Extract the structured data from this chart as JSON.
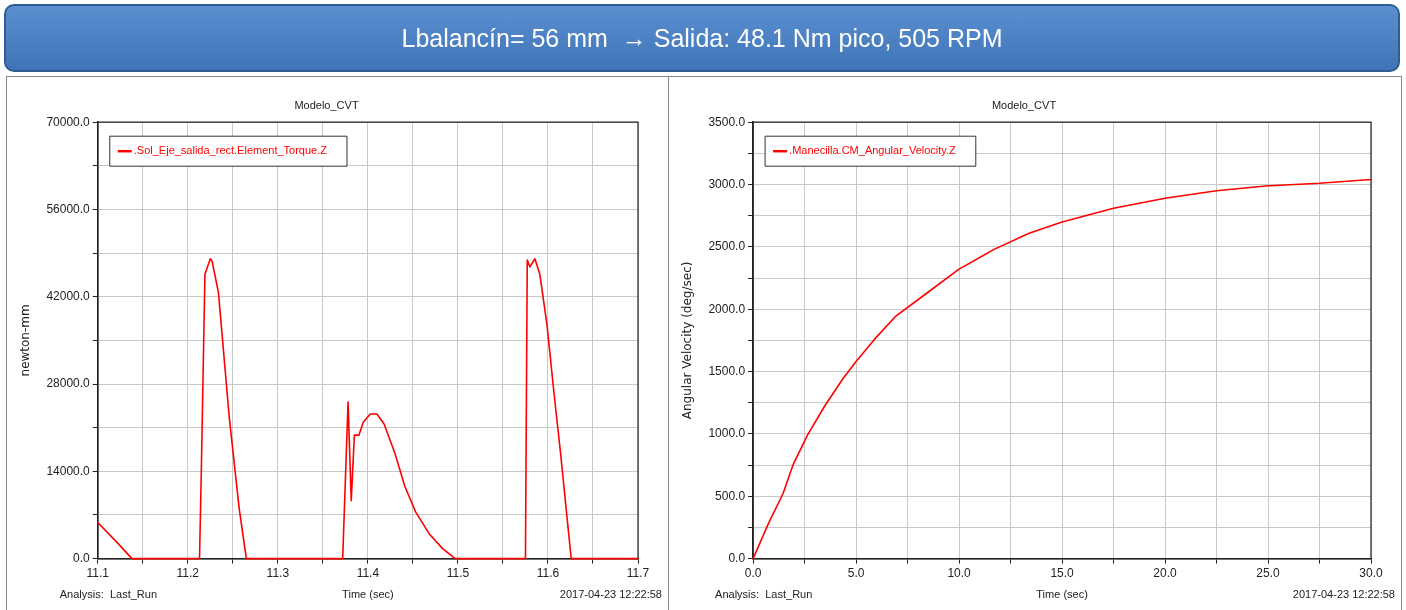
{
  "chart_data": [
    {
      "type": "other",
      "title": "Lbalancín= 56 mm  → Salida: 48.1 Nm pico, 505 RPM"
    },
    {
      "type": "line",
      "title": "Modelo_CVT",
      "xlabel": "Time (sec)",
      "ylabel": "newton-mm",
      "legend": "top left",
      "grid": true,
      "marker": "none",
      "line_style": "solid",
      "xlim": [
        11.1,
        11.7
      ],
      "xticks": [
        11.1,
        {
          "value": 11.15,
          "label": null
        },
        11.2,
        {
          "value": 11.25,
          "label": null
        },
        11.3,
        {
          "value": 11.35,
          "label": null
        },
        11.4,
        {
          "value": 11.45,
          "label": null
        },
        11.5,
        {
          "value": 11.55,
          "label": null
        },
        11.6,
        {
          "value": 11.65,
          "label": null
        },
        11.7
      ],
      "ylim": [
        0,
        70000
      ],
      "yticks": [
        {
          "value": 0,
          "label": "0.0"
        },
        {
          "value": 7000,
          "label": null
        },
        {
          "value": 14000,
          "label": "14000.0"
        },
        {
          "value": 21000,
          "label": null
        },
        {
          "value": 28000,
          "label": "28000.0"
        },
        {
          "value": 35000,
          "label": null
        },
        {
          "value": 42000,
          "label": "42000.0"
        },
        {
          "value": 49000,
          "label": null
        },
        {
          "value": 56000,
          "label": "56000.0"
        },
        {
          "value": 63000,
          "label": null
        },
        {
          "value": 70000,
          "label": "70000.0"
        }
      ],
      "x": [
        11.1,
        11.12,
        11.138,
        11.213,
        11.215,
        11.219,
        11.225,
        11.227,
        11.234,
        11.246,
        11.257,
        11.265,
        11.372,
        11.378,
        11.3815,
        11.385,
        11.39,
        11.395,
        11.4027,
        11.41,
        11.418,
        11.43,
        11.441,
        11.453,
        11.468,
        11.483,
        11.497,
        11.575,
        11.577,
        11.58,
        11.5855,
        11.591,
        11.599,
        11.6065,
        11.614,
        11.6258,
        11.7
      ],
      "series": [
        {
          "name": ".Sol_Eje_salida_rect.Element_Torque.Z",
          "color": "#ff0000",
          "values": [
            5800,
            2800,
            0,
            0,
            14000,
            45600,
            48100,
            47700,
            42700,
            22700,
            8100,
            0,
            0,
            25100,
            9300,
            19800,
            19800,
            21900,
            23200,
            23200,
            21600,
            16900,
            11600,
            7500,
            4000,
            1600,
            0,
            0,
            47900,
            46800,
            48100,
            45600,
            37400,
            26800,
            16900,
            0,
            0
          ]
        }
      ],
      "annotations": [
        "Analysis:  Last_Run",
        "2017-04-23 12:22:58"
      ]
    },
    {
      "type": "line",
      "title": "Modelo_CVT",
      "xlabel": "Time (sec)",
      "ylabel": "Angular Velocity (deg/sec)",
      "legend": "top left",
      "grid": true,
      "marker": "none",
      "line_style": "solid",
      "xlim": [
        0,
        30
      ],
      "xticks": [
        {
          "value": 0,
          "label": "0.0"
        },
        {
          "value": 2.5,
          "label": null
        },
        {
          "value": 5,
          "label": "5.0"
        },
        {
          "value": 7.5,
          "label": null
        },
        {
          "value": 10,
          "label": "10.0"
        },
        {
          "value": 12.5,
          "label": null
        },
        {
          "value": 15,
          "label": "15.0"
        },
        {
          "value": 17.5,
          "label": null
        },
        {
          "value": 20,
          "label": "20.0"
        },
        {
          "value": 22.5,
          "label": null
        },
        {
          "value": 25,
          "label": "25.0"
        },
        {
          "value": 27.5,
          "label": null
        },
        {
          "value": 30,
          "label": "30.0"
        }
      ],
      "ylim": [
        0,
        3500
      ],
      "yticks": [
        {
          "value": 0,
          "label": "0.0"
        },
        {
          "value": 250,
          "label": null
        },
        {
          "value": 500,
          "label": "500.0"
        },
        {
          "value": 750,
          "label": null
        },
        {
          "value": 1000,
          "label": "1000.0"
        },
        {
          "value": 1250,
          "label": null
        },
        {
          "value": 1500,
          "label": "1500.0"
        },
        {
          "value": 1750,
          "label": null
        },
        {
          "value": 2000,
          "label": "2000.0"
        },
        {
          "value": 2250,
          "label": null
        },
        {
          "value": 2500,
          "label": "2500.0"
        },
        {
          "value": 2750,
          "label": null
        },
        {
          "value": 3000,
          "label": "3000.0"
        },
        {
          "value": 3250,
          "label": null
        },
        {
          "value": 3500,
          "label": "3500.0"
        }
      ],
      "x": [
        0,
        0.77,
        1.45,
        1.96,
        2.64,
        3.5,
        4.35,
        5,
        5.9,
        6.9,
        8.28,
        9.98,
        11.7,
        13.4,
        15,
        17.5,
        20,
        22.5,
        25,
        27.5,
        30
      ],
      "series": [
        {
          "name": ".Manecilla.CM_Angular_Velocity.Z",
          "color": "#ff0000",
          "values": [
            0,
            290,
            520,
            760,
            990,
            1230,
            1440,
            1580,
            1760,
            1940,
            2110,
            2320,
            2480,
            2610,
            2700,
            2810,
            2890,
            2950,
            2990,
            3010,
            3040
          ]
        }
      ],
      "annotations": [
        "Analysis:  Last_Run",
        "2017-04-23 12:22:58"
      ]
    }
  ]
}
